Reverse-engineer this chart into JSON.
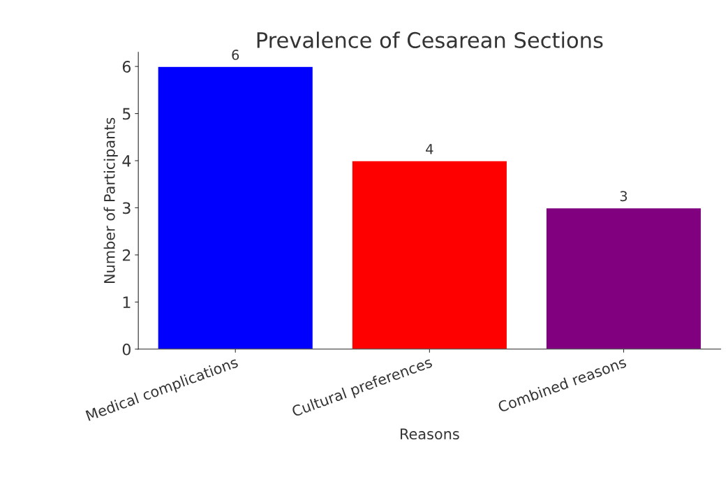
{
  "chart_data": {
    "type": "bar",
    "title": "Prevalence of Cesarean Sections",
    "xlabel": "Reasons",
    "ylabel": "Number of Participants",
    "categories": [
      "Medical complications",
      "Cultural preferences",
      "Combined reasons"
    ],
    "values": [
      6,
      4,
      3
    ],
    "colors": [
      "#0000ff",
      "#ff0000",
      "#800080"
    ],
    "ylim": [
      0,
      6.3
    ],
    "yticks": [
      0,
      1,
      2,
      3,
      4,
      5,
      6
    ],
    "data_labels": true,
    "grid": false,
    "legend": false
  }
}
